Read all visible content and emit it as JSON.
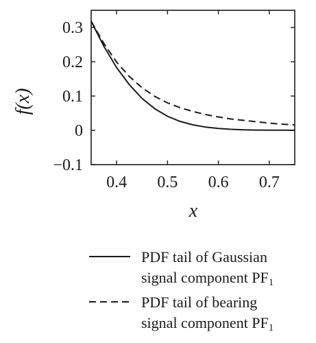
{
  "chart_data": {
    "type": "line",
    "title": "",
    "xlabel": "x",
    "ylabel": "f(x)",
    "xlim": [
      0.35,
      0.75
    ],
    "ylim": [
      -0.1,
      0.35
    ],
    "xticks": [
      0.4,
      0.5,
      0.6,
      0.7
    ],
    "xtick_labels": [
      "0.4",
      "0.5",
      "0.6",
      "0.7"
    ],
    "yticks": [
      -0.1,
      0,
      0.1,
      0.2,
      0.3
    ],
    "ytick_labels": [
      "−0.1",
      "0",
      "0.1",
      "0.2",
      "0.3"
    ],
    "grid": false,
    "legend_position": "bottom",
    "series": [
      {
        "name_line1": "PDF tail of Gaussian",
        "name_line2": "signal component PF",
        "name_subscript": "1",
        "style": "solid",
        "color": "#1a1a1a",
        "x": [
          0.35,
          0.375,
          0.4,
          0.425,
          0.45,
          0.475,
          0.5,
          0.525,
          0.55,
          0.575,
          0.6,
          0.625,
          0.65,
          0.675,
          0.7,
          0.725,
          0.75
        ],
        "y": [
          0.318,
          0.245,
          0.183,
          0.133,
          0.093,
          0.063,
          0.041,
          0.026,
          0.016,
          0.0095,
          0.0055,
          0.003,
          0.0017,
          0.0009,
          0.0005,
          0.0003,
          0.0002
        ]
      },
      {
        "name_line1": "PDF tail of bearing",
        "name_line2": "signal component PF",
        "name_subscript": "1",
        "style": "dashed",
        "color": "#1a1a1a",
        "x": [
          0.35,
          0.375,
          0.4,
          0.425,
          0.45,
          0.475,
          0.5,
          0.525,
          0.55,
          0.575,
          0.6,
          0.625,
          0.65,
          0.675,
          0.7,
          0.725,
          0.75
        ],
        "y": [
          0.318,
          0.253,
          0.199,
          0.157,
          0.124,
          0.099,
          0.08,
          0.066,
          0.055,
          0.046,
          0.039,
          0.033,
          0.029,
          0.025,
          0.021,
          0.018,
          0.016
        ]
      }
    ]
  }
}
